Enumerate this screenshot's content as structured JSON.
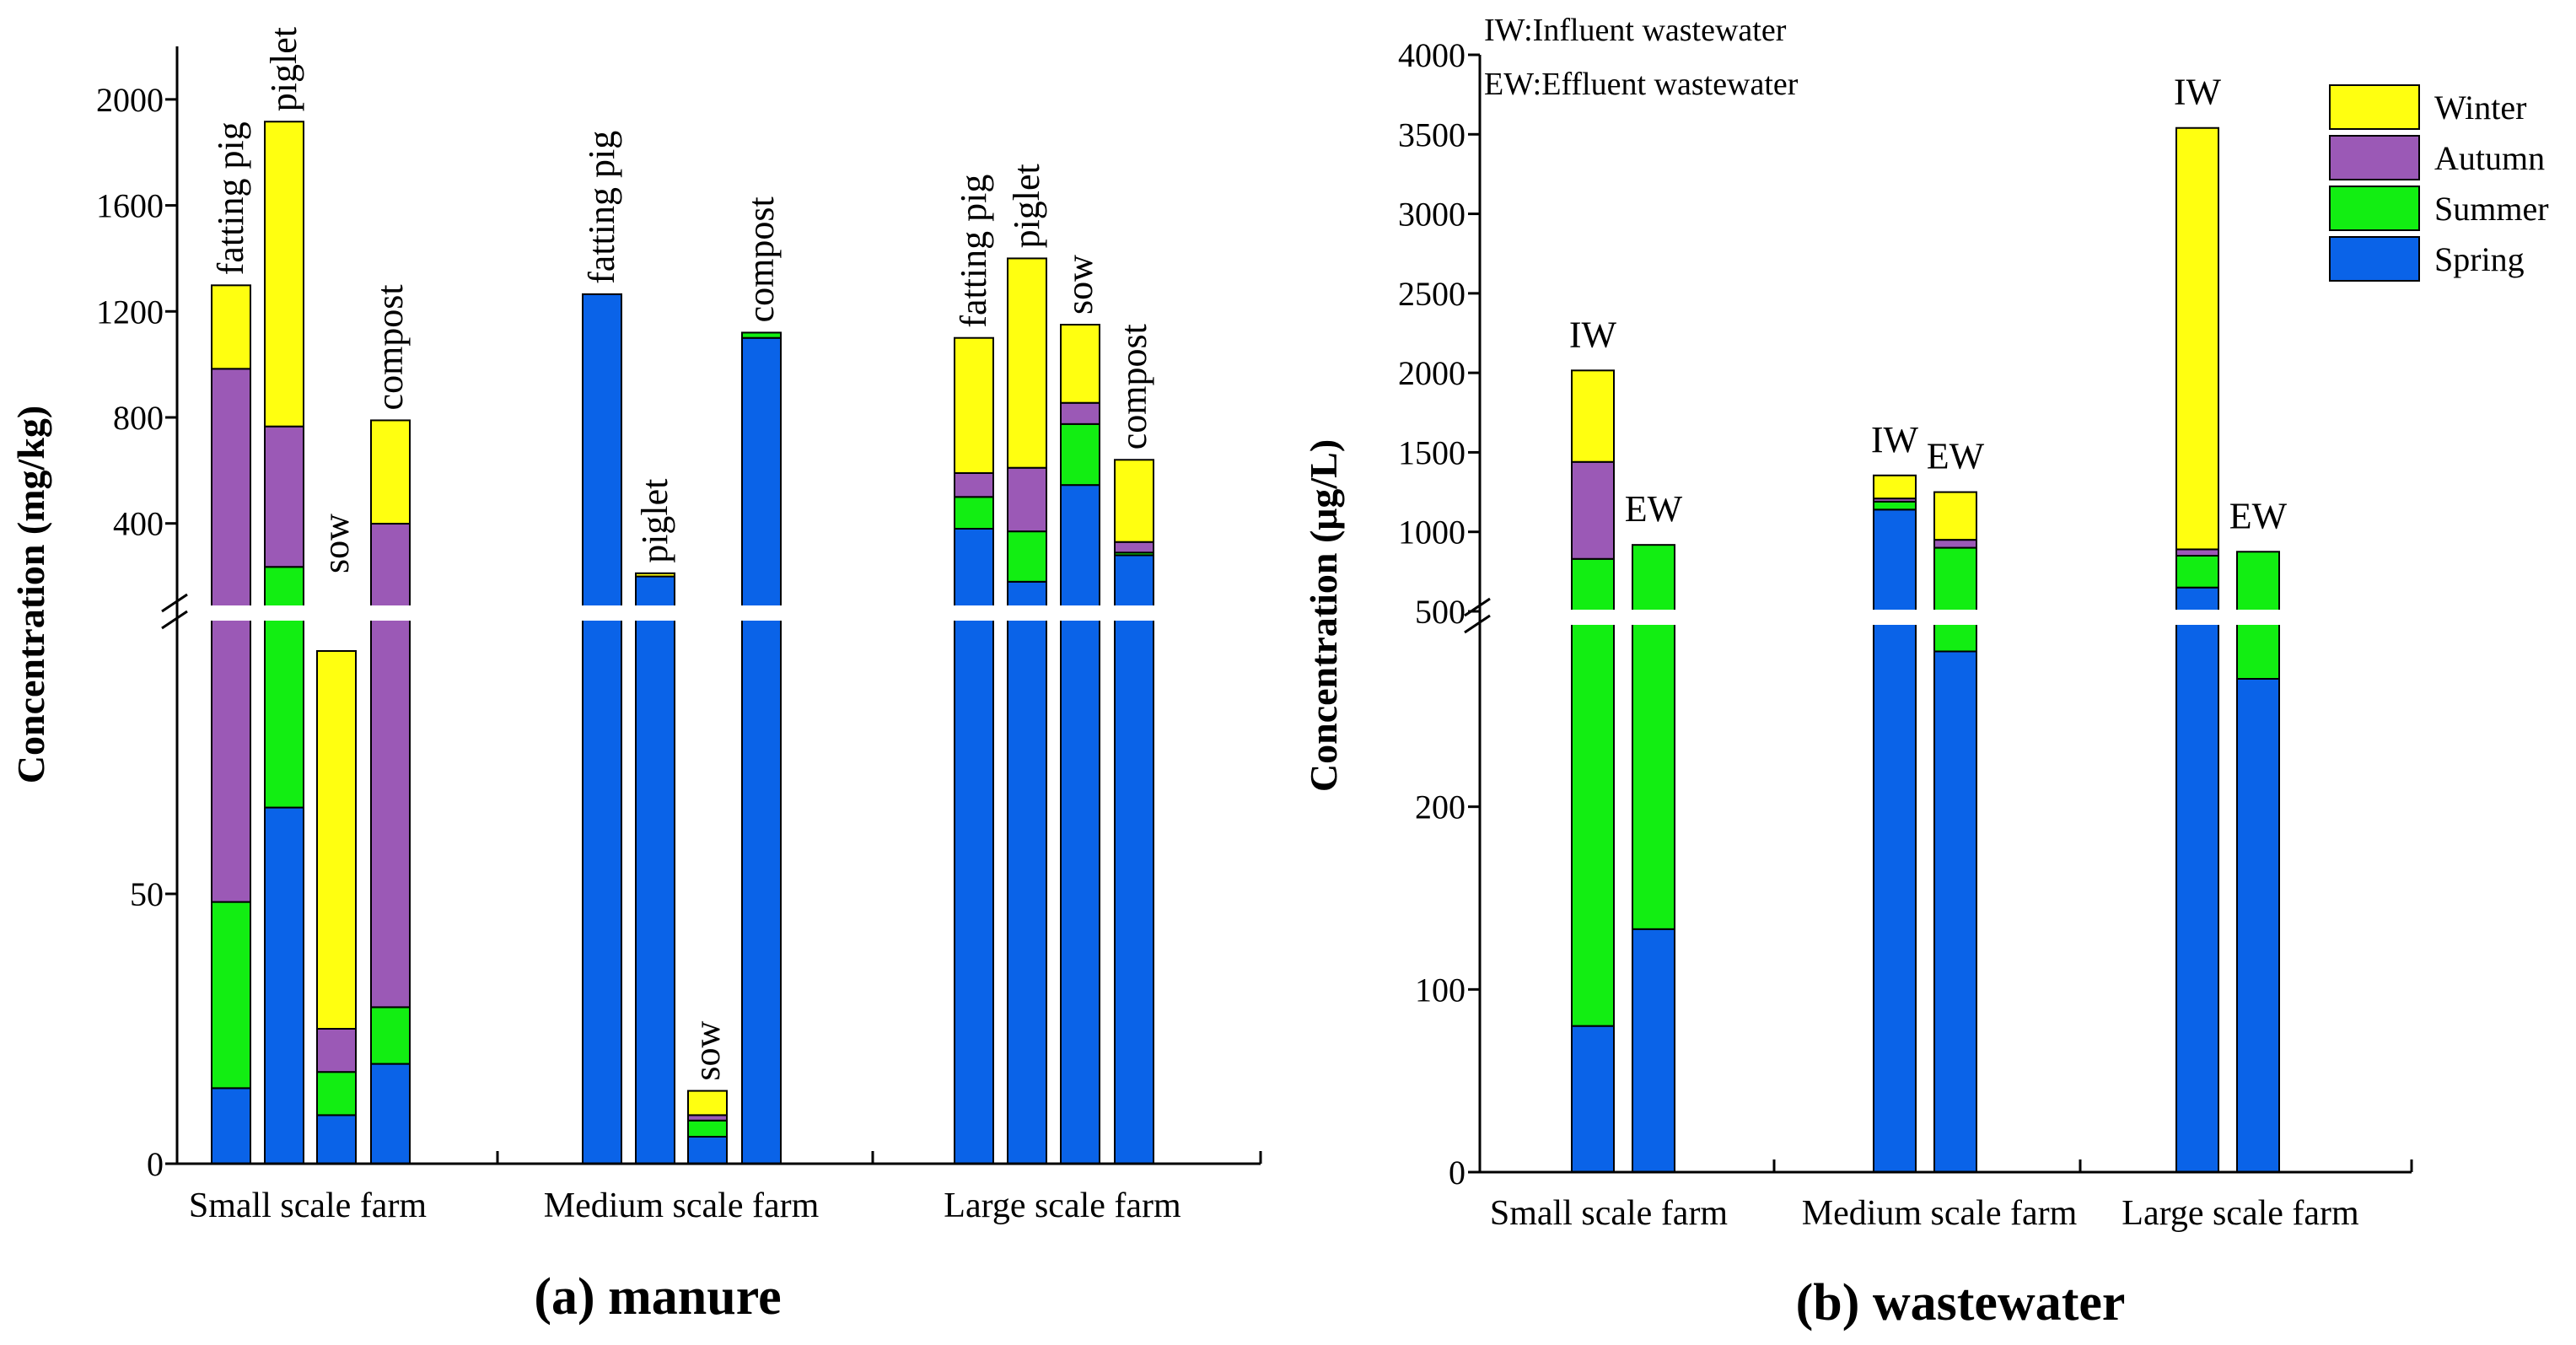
{
  "colors": {
    "Spring": "#0a63e8",
    "Summer": "#12ee12",
    "Autumn": "#9b59b6",
    "Winter": "#ffff10"
  },
  "chart_data": [
    {
      "type": "bar",
      "stacked": true,
      "broken_axis": true,
      "title": "(a) manure",
      "xlabel": "",
      "ylabel": "Concentration (mg/kg)",
      "ylim_lower": [
        0,
        100
      ],
      "ylim_upper": [
        100,
        2200
      ],
      "yticks_lower": [
        "0",
        "50"
      ],
      "yticks_upper": [
        "400",
        "800",
        "1200",
        "1600",
        "2000"
      ],
      "series_names": [
        "Spring",
        "Summer",
        "Autumn",
        "Winter"
      ],
      "groups": [
        {
          "name": "Small scale farm",
          "bars": [
            {
              "label": "fatting pig",
              "Spring": 14,
              "Summer": 34.5,
              "Autumn": 935,
              "Winter": 315
            },
            {
              "label": "piglet",
              "Spring": 66,
              "Summer": 170,
              "Autumn": 530,
              "Winter": 1150
            },
            {
              "label": "sow",
              "Spring": 9,
              "Summer": 8,
              "Autumn": 8,
              "Winter": 70
            },
            {
              "label": "compost",
              "Spring": 18.5,
              "Summer": 10.5,
              "Autumn": 370,
              "Winter": 390
            }
          ]
        },
        {
          "name": "Medium scale farm",
          "bars": [
            {
              "label": "fatting pig",
              "Spring": 1265,
              "Summer": 0,
              "Autumn": 0,
              "Winter": 0
            },
            {
              "label": "piglet",
              "Spring": 200,
              "Summer": 0,
              "Autumn": 0,
              "Winter": 12
            },
            {
              "label": "sow",
              "Spring": 5,
              "Summer": 3,
              "Autumn": 1,
              "Winter": 4.5
            },
            {
              "label": "compost",
              "Spring": 1100,
              "Summer": 20,
              "Autumn": 0,
              "Winter": 0
            }
          ]
        },
        {
          "name": "Large scale farm",
          "bars": [
            {
              "label": "fatting pig",
              "Spring": 380,
              "Summer": 120,
              "Autumn": 90,
              "Winter": 510
            },
            {
              "label": "piglet",
              "Spring": 180,
              "Summer": 190,
              "Autumn": 240,
              "Winter": 790
            },
            {
              "label": "sow",
              "Spring": 545,
              "Summer": 230,
              "Autumn": 80,
              "Winter": 295
            },
            {
              "label": "compost",
              "Spring": 280,
              "Summer": 10,
              "Autumn": 40,
              "Winter": 310
            }
          ]
        }
      ]
    },
    {
      "type": "bar",
      "stacked": true,
      "broken_axis": true,
      "title": "(b) wastewater",
      "xlabel": "",
      "ylabel": "Concentration (μg/L)",
      "ylim_lower": [
        0,
        300
      ],
      "ylim_upper": [
        500,
        4000
      ],
      "yticks_lower": [
        "0",
        "100",
        "200"
      ],
      "yticks_upper": [
        "500",
        "1000",
        "1500",
        "2000",
        "2500",
        "3000",
        "3500",
        "4000"
      ],
      "series_names": [
        "Spring",
        "Summer",
        "Autumn",
        "Winter"
      ],
      "annotations": [
        "IW:Influent wastewater",
        "EW:Effluent wastewater"
      ],
      "legend": {
        "placement": "top-right",
        "entries": [
          "Winter",
          "Autumn",
          "Summer",
          "Spring"
        ]
      },
      "groups": [
        {
          "name": "Small scale farm",
          "bars": [
            {
              "label": "IW",
              "Spring": 80,
              "Summer": 750,
              "Autumn": 610,
              "Winter": 575
            },
            {
              "label": "EW",
              "Spring": 133,
              "Summer": 785,
              "Autumn": 0,
              "Winter": 0
            }
          ]
        },
        {
          "name": "Medium scale farm",
          "bars": [
            {
              "label": "IW",
              "Spring": 1140,
              "Summer": 50,
              "Autumn": 20,
              "Winter": 145
            },
            {
              "label": "EW",
              "Spring": 285,
              "Summer": 615,
              "Autumn": 50,
              "Winter": 300
            }
          ]
        },
        {
          "name": "Large scale farm",
          "bars": [
            {
              "label": "IW",
              "Spring": 650,
              "Summer": 200,
              "Autumn": 40,
              "Winter": 2650
            },
            {
              "label": "EW",
              "Spring": 270,
              "Summer": 605,
              "Autumn": 0,
              "Winter": 0
            }
          ]
        }
      ]
    }
  ]
}
